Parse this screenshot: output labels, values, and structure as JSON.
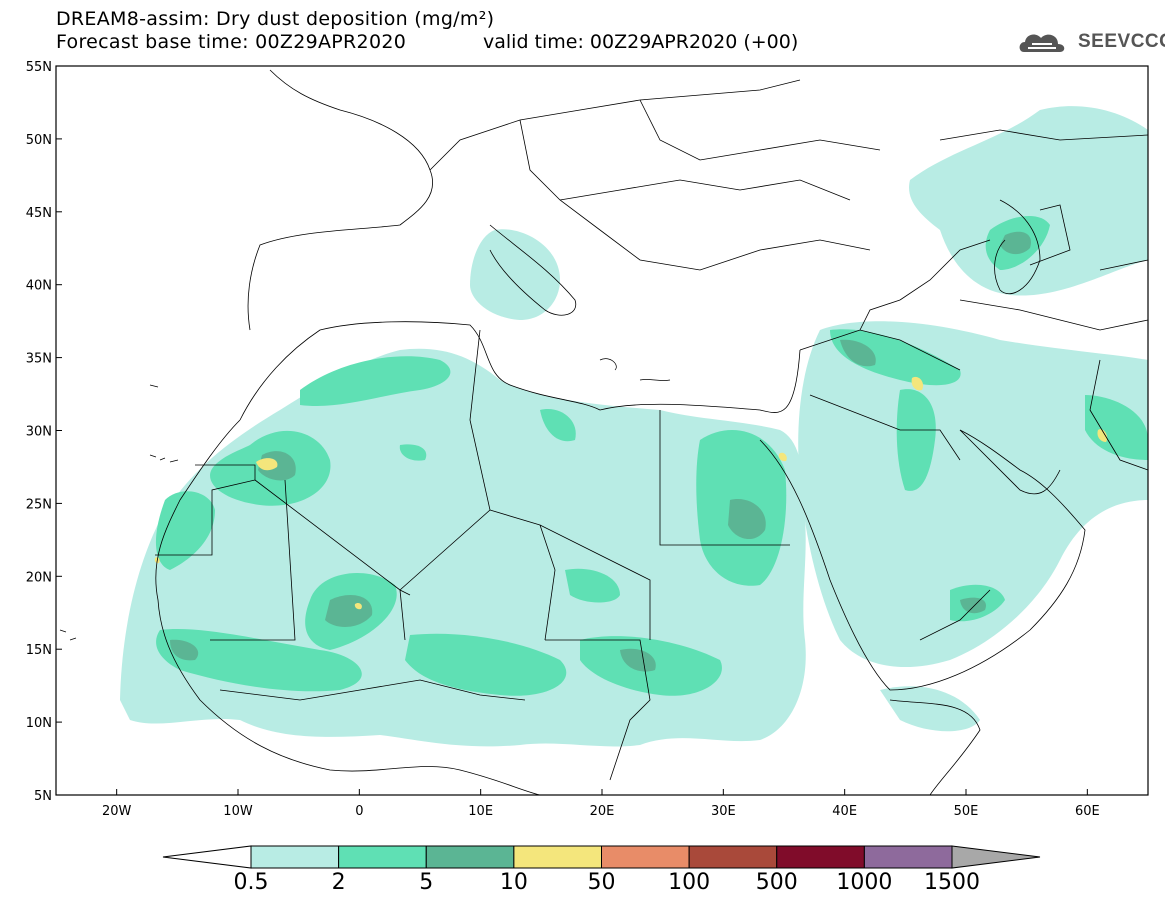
{
  "title": {
    "line1": "DREAM8-assim: Dry dust deposition (mg/m²)",
    "line2_base": "Forecast base time: 00Z29APR2020",
    "line2_valid": "valid time: 00Z29APR2020 (+00)"
  },
  "logo": {
    "text": "SEEVCCC",
    "icon": "cloud-icon"
  },
  "map": {
    "lon_range": [
      -25,
      65
    ],
    "lat_range": [
      5,
      55
    ],
    "x_ticks": [
      {
        "lon": -20,
        "label": "20W"
      },
      {
        "lon": -10,
        "label": "10W"
      },
      {
        "lon": 0,
        "label": "0"
      },
      {
        "lon": 10,
        "label": "10E"
      },
      {
        "lon": 20,
        "label": "20E"
      },
      {
        "lon": 30,
        "label": "30E"
      },
      {
        "lon": 40,
        "label": "40E"
      },
      {
        "lon": 50,
        "label": "50E"
      },
      {
        "lon": 60,
        "label": "60E"
      }
    ],
    "y_ticks": [
      {
        "lat": 55,
        "label": "55N"
      },
      {
        "lat": 50,
        "label": "50N"
      },
      {
        "lat": 45,
        "label": "45N"
      },
      {
        "lat": 40,
        "label": "40N"
      },
      {
        "lat": 35,
        "label": "35N"
      },
      {
        "lat": 30,
        "label": "30N"
      },
      {
        "lat": 25,
        "label": "25N"
      },
      {
        "lat": 20,
        "label": "20N"
      },
      {
        "lat": 15,
        "label": "15N"
      },
      {
        "lat": 10,
        "label": "10N"
      },
      {
        "lat": 5,
        "label": "5N"
      }
    ]
  },
  "colorbar": {
    "labels": [
      "0.5",
      "2",
      "5",
      "10",
      "50",
      "100",
      "500",
      "1000",
      "1500"
    ],
    "colors": [
      "#ffffff",
      "#b8ece4",
      "#5fe0b4",
      "#5bb594",
      "#f4e67c",
      "#e88c68",
      "#a9493a",
      "#800c2a",
      "#8e6a9c",
      "#a8a8a8"
    ]
  }
}
